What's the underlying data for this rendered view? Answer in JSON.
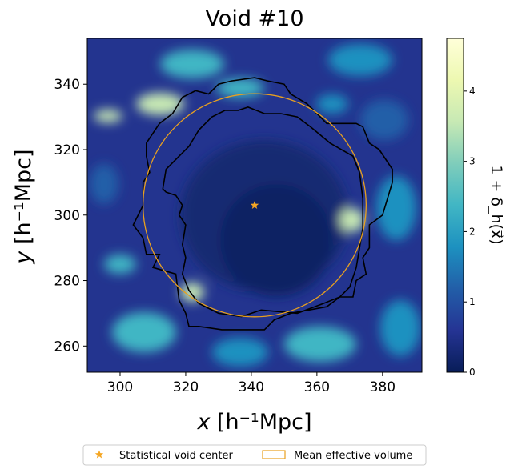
{
  "chart_data": {
    "type": "heatmap",
    "title": "Void #10",
    "xlabel_main": "x",
    "xlabel_unit": "[h⁻¹Mpc]",
    "ylabel_main": "y",
    "ylabel_unit": "[h⁻¹Mpc]",
    "xlim": [
      290,
      392
    ],
    "ylim": [
      252,
      354
    ],
    "xticks": [
      300,
      320,
      340,
      360,
      380
    ],
    "yticks": [
      260,
      280,
      300,
      320,
      340
    ],
    "colorbar": {
      "label": "1 + δ_h(x⃗)",
      "range": [
        0,
        4.75
      ],
      "ticks": [
        0,
        1,
        2,
        3,
        4
      ],
      "colormap": "YlGnBu_r"
    },
    "void_center": {
      "x": 341,
      "y": 303,
      "color": "#f5a623"
    },
    "mean_effective_circle": {
      "cx": 341,
      "cy": 303,
      "r": 34,
      "color": "#e8a020"
    },
    "outer_contour": [
      [
        308,
        322
      ],
      [
        312,
        328
      ],
      [
        316,
        331
      ],
      [
        319,
        336
      ],
      [
        323,
        338
      ],
      [
        327,
        337
      ],
      [
        330,
        340
      ],
      [
        334,
        341
      ],
      [
        341,
        342
      ],
      [
        345,
        341
      ],
      [
        350,
        340
      ],
      [
        352,
        337
      ],
      [
        357,
        334
      ],
      [
        361,
        330
      ],
      [
        363,
        328
      ],
      [
        372,
        328
      ],
      [
        374,
        327
      ],
      [
        376,
        322
      ],
      [
        379,
        320
      ],
      [
        383,
        314
      ],
      [
        383,
        310
      ],
      [
        380,
        300
      ],
      [
        376,
        297
      ],
      [
        376,
        290
      ],
      [
        374,
        287
      ],
      [
        375,
        282
      ],
      [
        372,
        280
      ],
      [
        371,
        275
      ],
      [
        367,
        275
      ],
      [
        363,
        272
      ],
      [
        352,
        270
      ],
      [
        347,
        268
      ],
      [
        344,
        265
      ],
      [
        337,
        265
      ],
      [
        331,
        265
      ],
      [
        324,
        266
      ],
      [
        321,
        266
      ],
      [
        320,
        270
      ],
      [
        318,
        274
      ],
      [
        317,
        282
      ],
      [
        310,
        284
      ],
      [
        312,
        288
      ],
      [
        308,
        288
      ],
      [
        307,
        293
      ],
      [
        304,
        297
      ],
      [
        307,
        303
      ],
      [
        307,
        310
      ],
      [
        309,
        313
      ],
      [
        308,
        318
      ],
      [
        308,
        322
      ]
    ],
    "inner_contour": [
      [
        313,
        308
      ],
      [
        314,
        314
      ],
      [
        318,
        318
      ],
      [
        321,
        321
      ],
      [
        324,
        326
      ],
      [
        328,
        330
      ],
      [
        332,
        332
      ],
      [
        336,
        332
      ],
      [
        339,
        333
      ],
      [
        344,
        331
      ],
      [
        349,
        331
      ],
      [
        354,
        330
      ],
      [
        358,
        327
      ],
      [
        364,
        322
      ],
      [
        371,
        318
      ],
      [
        373,
        313
      ],
      [
        374,
        305
      ],
      [
        374,
        296
      ],
      [
        373,
        290
      ],
      [
        372,
        284
      ],
      [
        370,
        278
      ],
      [
        367,
        275
      ],
      [
        362,
        273
      ],
      [
        354,
        270
      ],
      [
        343,
        271
      ],
      [
        337,
        269
      ],
      [
        330,
        270
      ],
      [
        324,
        273
      ],
      [
        321,
        277
      ],
      [
        319,
        282
      ],
      [
        320,
        287
      ],
      [
        319,
        291
      ],
      [
        320,
        297
      ],
      [
        318,
        300
      ],
      [
        319,
        303
      ],
      [
        317,
        306
      ],
      [
        314,
        307
      ],
      [
        313,
        308
      ]
    ],
    "legend": {
      "placement": "bottom-center",
      "entries": [
        {
          "label": "Statistical void center",
          "marker": "star"
        },
        {
          "label": "Mean effective volume",
          "marker": "rect"
        }
      ]
    }
  }
}
